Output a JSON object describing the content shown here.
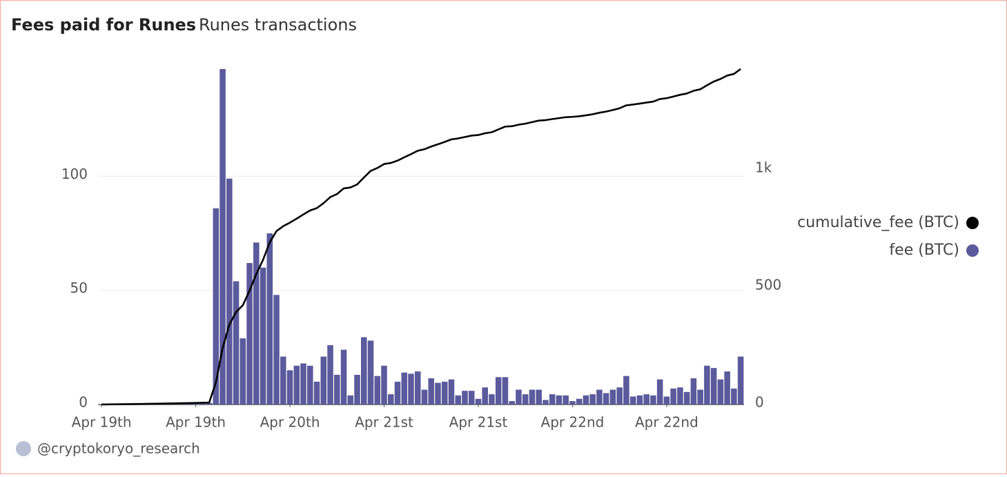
{
  "chart_data": {
    "type": "bar",
    "title": "Fees paid for Runes",
    "subtitle": "Runes transactions",
    "footer": "@cryptokoryo_research",
    "categories": [
      null,
      null,
      null,
      null,
      null,
      null,
      null,
      null,
      null,
      null,
      null,
      null,
      null,
      null,
      null,
      null,
      null,
      null,
      null,
      null,
      null,
      null,
      null,
      null,
      null,
      null,
      null,
      null,
      null,
      null,
      null,
      null,
      null,
      null,
      null,
      null,
      null,
      null,
      null,
      null,
      null,
      null,
      null,
      null,
      null,
      null,
      null,
      null,
      null,
      null,
      null,
      null,
      null,
      null,
      null,
      null,
      null,
      null,
      null,
      null,
      null,
      null,
      null,
      null,
      null,
      null,
      null,
      null,
      null,
      null,
      null,
      null,
      null,
      null,
      null,
      null,
      null,
      null,
      null,
      null,
      null,
      null,
      null,
      null,
      null,
      null,
      null,
      null,
      null,
      null,
      null,
      null,
      null,
      null,
      null,
      null
    ],
    "xticks": [
      {
        "value": 0,
        "label": "Apr 19th"
      },
      {
        "value": 14,
        "label": "Apr 19th"
      },
      {
        "value": 28,
        "label": "Apr 20th"
      },
      {
        "value": 42,
        "label": "Apr 21st"
      },
      {
        "value": 56,
        "label": "Apr 21st"
      },
      {
        "value": 70,
        "label": "Apr 22nd"
      },
      {
        "value": 84,
        "label": "Apr 22nd"
      }
    ],
    "ylim": [
      0,
      147
    ],
    "yticks": [
      0,
      50,
      100
    ],
    "y2lim": [
      0,
      1430
    ],
    "y2ticks": [
      0,
      500,
      {
        "value": 1000,
        "label": "1k"
      }
    ],
    "grid": true,
    "legend": "right",
    "series": [
      {
        "name": "cumulative_fee (BTC)",
        "type": "line",
        "axis": "y2",
        "color": "#000000",
        "values": [
          0.2,
          0.5,
          0.8,
          1.2,
          1.6,
          2.0,
          2.5,
          3.0,
          3.5,
          4.0,
          4.5,
          5.0,
          5.6,
          6.2,
          6.8,
          7.5,
          8.2,
          94.2,
          241.2,
          340.2,
          394.2,
          423.2,
          485.2,
          556.2,
          616.2,
          691.2,
          739.2,
          760.2,
          775.2,
          792.2,
          810.2,
          827.2,
          837.2,
          858.2,
          884.2,
          897.2,
          921.2,
          925.2,
          938.2,
          967.7,
          995.7,
          1008.2,
          1025.2,
          1029.7,
          1039.7,
          1053.7,
          1067.2,
          1081.7,
          1088.2,
          1099.7,
          1109.2,
          1119.2,
          1130.2,
          1134.2,
          1140.2,
          1146.2,
          1148.7,
          1156.2,
          1160.7,
          1172.7,
          1184.7,
          1186.2,
          1192.7,
          1197.2,
          1203.7,
          1210.2,
          1212.2,
          1216.7,
          1220.7,
          1224.7,
          1226.2,
          1228.7,
          1232.7,
          1237.2,
          1243.7,
          1248.7,
          1255.2,
          1262.7,
          1275.2,
          1278.7,
          1282.7,
          1287.2,
          1291.2,
          1302.2,
          1305.7,
          1312.7,
          1320.2,
          1325.7,
          1337.2,
          1343.7,
          1360.7,
          1376.7,
          1387.7,
          1402.2,
          1409.2,
          1430.2
        ]
      },
      {
        "name": "fee (BTC)",
        "type": "bar",
        "color": "#5a5a9c",
        "values": [
          0.2,
          0.3,
          0.3,
          0.4,
          0.4,
          0.4,
          0.5,
          0.5,
          0.5,
          0.5,
          0.5,
          0.5,
          0.6,
          0.6,
          0.6,
          0.7,
          0.7,
          86,
          147,
          99,
          54,
          29,
          62,
          71,
          60,
          75,
          48,
          21,
          15,
          17,
          18,
          17,
          10,
          21,
          26,
          13,
          24,
          4,
          13,
          29.5,
          28,
          12.5,
          17,
          4.5,
          10,
          14,
          13.5,
          14.5,
          6.5,
          11.5,
          9.5,
          10,
          11,
          4,
          6,
          6,
          2.5,
          7.5,
          4.5,
          12,
          12,
          1.5,
          6.5,
          4.5,
          6.5,
          6.5,
          2,
          4.5,
          4,
          4,
          1.5,
          2.5,
          4,
          4.5,
          6.5,
          5,
          6.5,
          7.5,
          12.5,
          3.5,
          4,
          4.5,
          4,
          11,
          3.5,
          7,
          7.5,
          5.5,
          11.5,
          6.5,
          17,
          16,
          11,
          14.5,
          7,
          21
        ]
      }
    ]
  }
}
